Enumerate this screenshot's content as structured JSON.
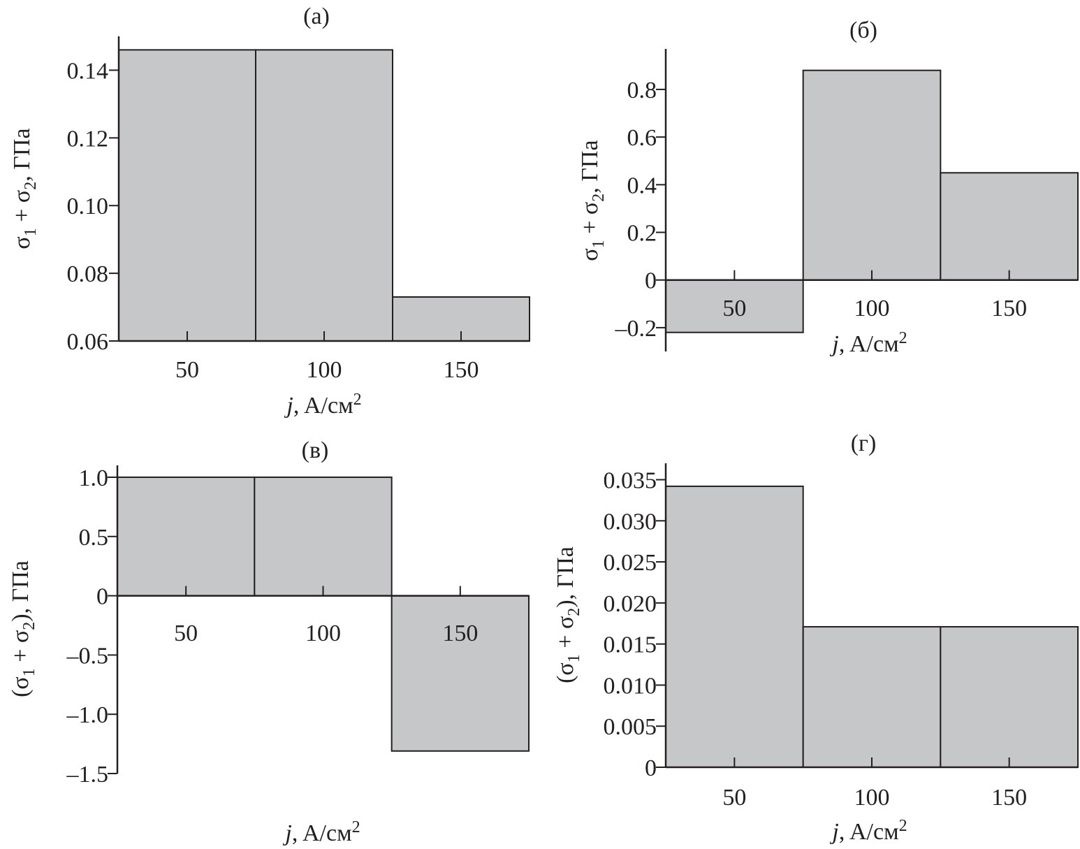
{
  "chart_data": [
    {
      "type": "bar",
      "panel": "(a)",
      "categories": [
        "50",
        "100",
        "150"
      ],
      "x": [
        50,
        100,
        150
      ],
      "values": [
        0.146,
        0.146,
        0.073
      ],
      "xlabel": {
        "var": "j",
        "text": ", A/см",
        "sup": "2"
      },
      "ylabel": {
        "prefix": "σ",
        "sub1": "1",
        "mid": " + σ",
        "sub2": "2",
        "suffix": ", ГПа"
      },
      "ylim": [
        0.06,
        0.15
      ],
      "yticks": [
        0.06,
        0.08,
        0.1,
        0.12,
        0.14
      ],
      "ytick_labels": [
        "0.06",
        "0.08",
        "0.10",
        "0.12",
        "0.14"
      ],
      "xlim": [
        25,
        175
      ]
    },
    {
      "type": "bar",
      "panel": "(б)",
      "categories": [
        "50",
        "100",
        "150"
      ],
      "x": [
        50,
        100,
        150
      ],
      "values": [
        -0.22,
        0.88,
        0.45
      ],
      "xlabel": {
        "var": "j",
        "text": ", A/см",
        "sup": "2"
      },
      "ylabel": {
        "prefix": "σ",
        "sub1": "1",
        "mid": " + σ",
        "sub2": "2",
        "suffix": ", ГПа"
      },
      "ylim": [
        -0.3,
        0.97
      ],
      "yticks": [
        -0.2,
        0,
        0.2,
        0.4,
        0.6,
        0.8
      ],
      "ytick_labels": [
        "–0.2",
        "0",
        "0.2",
        "0.4",
        "0.6",
        "0.8"
      ],
      "xlim": [
        25,
        175
      ]
    },
    {
      "type": "bar",
      "panel": "(в)",
      "categories": [
        "50",
        "100",
        "150"
      ],
      "x": [
        50,
        100,
        150
      ],
      "values": [
        1.0,
        1.0,
        -1.31
      ],
      "xlabel": {
        "var": "j",
        "text": ", A/см",
        "sup": "2"
      },
      "ylabel": {
        "prefix": "(σ",
        "sub1": "1",
        "mid": " + σ",
        "sub2": "2",
        "suffix": "), ГПа"
      },
      "ylim": [
        -1.5,
        1.1
      ],
      "yticks": [
        -1.5,
        -1.0,
        -0.5,
        0,
        0.5,
        1.0
      ],
      "ytick_labels": [
        "–1.5",
        "–1.0",
        "–0.5",
        "0",
        "0.5",
        "1.0"
      ],
      "xlim": [
        25,
        175
      ]
    },
    {
      "type": "bar",
      "panel": "(г)",
      "categories": [
        "50",
        "100",
        "150"
      ],
      "x": [
        50,
        100,
        150
      ],
      "values": [
        0.0342,
        0.0171,
        0.0171
      ],
      "xlabel": {
        "var": "j",
        "text": ", A/см",
        "sup": "2"
      },
      "ylabel": {
        "prefix": "(σ",
        "sub1": "1",
        "mid": " + σ",
        "sub2": "2",
        "suffix": "), ГПа"
      },
      "ylim": [
        0,
        0.037
      ],
      "yticks": [
        0,
        0.005,
        0.01,
        0.015,
        0.02,
        0.025,
        0.03,
        0.035
      ],
      "ytick_labels": [
        "0",
        "0.005",
        "0.010",
        "0.015",
        "0.020",
        "0.025",
        "0.030",
        "0.035"
      ],
      "xlim": [
        25,
        175
      ]
    }
  ],
  "colors": {
    "bar_fill": "#c6c7c9",
    "ink": "#231f20"
  }
}
